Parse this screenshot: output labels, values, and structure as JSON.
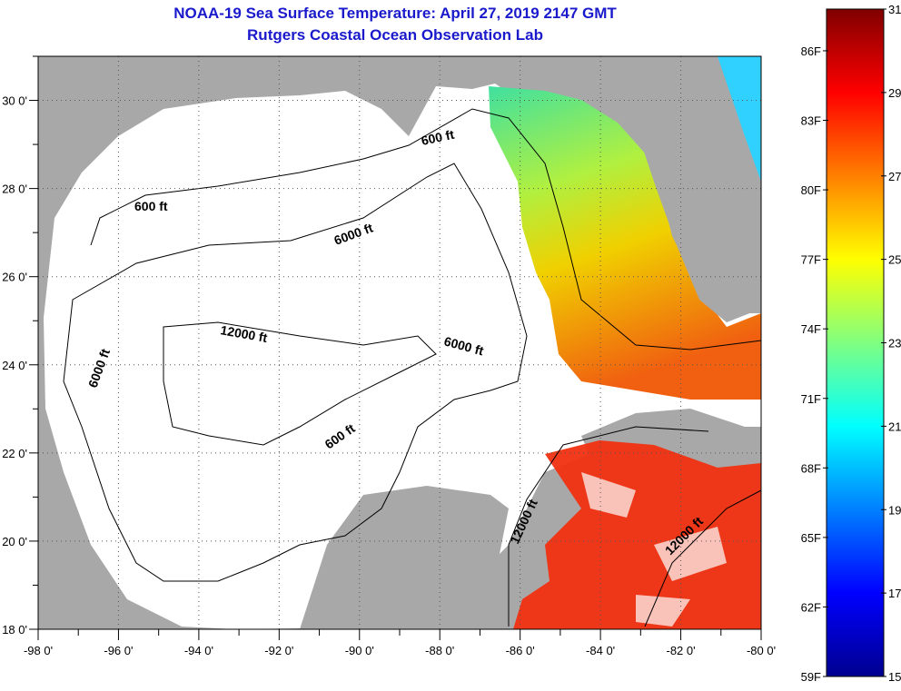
{
  "title": {
    "line1": "NOAA-19 Sea Surface Temperature:  April 27, 2019 2147 GMT",
    "line2": "Rutgers Coastal Ocean Observation Lab"
  },
  "map": {
    "lon_range": [
      -98,
      -80
    ],
    "lat_range": [
      18,
      31
    ],
    "x_ticks": [
      "-98 0'",
      "-96 0'",
      "-94 0'",
      "-92 0'",
      "-90 0'",
      "-88 0'",
      "-86 0'",
      "-84 0'",
      "-82 0'",
      "-80 0'"
    ],
    "y_ticks": [
      "18 0'",
      "20 0'",
      "22 0'",
      "24 0'",
      "26 0'",
      "28 0'",
      "30 0'"
    ],
    "contour_labels": [
      "600 ft",
      "6000 ft",
      "12000 ft",
      "6000 ft",
      "6000 ft",
      "600 ft",
      "600 ft",
      "12000 ft",
      "12000 ft"
    ],
    "colors": {
      "land": "#a8a8a8",
      "no_data": "#ffffff"
    }
  },
  "colorbar": {
    "fahrenheit": [
      "86F",
      "83F",
      "80F",
      "77F",
      "74F",
      "71F",
      "68F",
      "65F",
      "62F",
      "59F"
    ],
    "celsius": [
      "31C",
      "29C",
      "27C",
      "25C",
      "23C",
      "21C",
      "19C",
      "17C",
      "15C"
    ],
    "range_c": [
      15,
      31
    ]
  }
}
